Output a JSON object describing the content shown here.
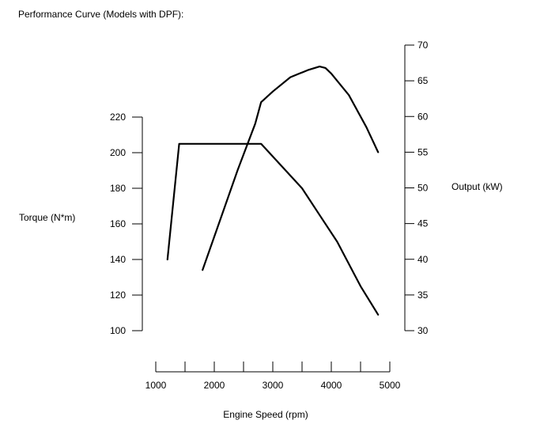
{
  "chart_data": {
    "type": "line",
    "title": "Performance Curve (Models with DPF):",
    "xlabel": "Engine Speed (rpm)",
    "ylabel_left": "Torque (N*m)",
    "ylabel_right": "Output (kW)",
    "xlim": [
      1000,
      5000
    ],
    "x_ticks": [
      1000,
      1500,
      2000,
      2500,
      3000,
      3500,
      4000,
      4500,
      5000
    ],
    "x_tick_labels": [
      1000,
      2000,
      3000,
      4000,
      5000
    ],
    "ylim_left": [
      100,
      220
    ],
    "y_ticks_left": [
      100,
      120,
      140,
      160,
      180,
      200,
      220
    ],
    "ylim_right": [
      30,
      70
    ],
    "y_ticks_right": [
      30,
      35,
      40,
      45,
      50,
      55,
      60,
      65,
      70
    ],
    "grid": false,
    "legend": "none",
    "line_color": "#000000",
    "series": [
      {
        "axis": "left",
        "x": [
          1200,
          1400,
          2800,
          3500,
          3800,
          4100,
          4500,
          4800
        ],
        "values": [
          140,
          205,
          205,
          180,
          165,
          150,
          125,
          109
        ]
      },
      {
        "axis": "right",
        "x": [
          1800,
          2100,
          2400,
          2700,
          2800,
          3000,
          3300,
          3600,
          3800,
          3900,
          4000,
          4300,
          4600,
          4800
        ],
        "values": [
          38.5,
          45.5,
          52.5,
          59,
          62,
          63.5,
          65.5,
          66.5,
          67,
          66.8,
          66,
          63,
          58.5,
          55
        ]
      }
    ]
  }
}
